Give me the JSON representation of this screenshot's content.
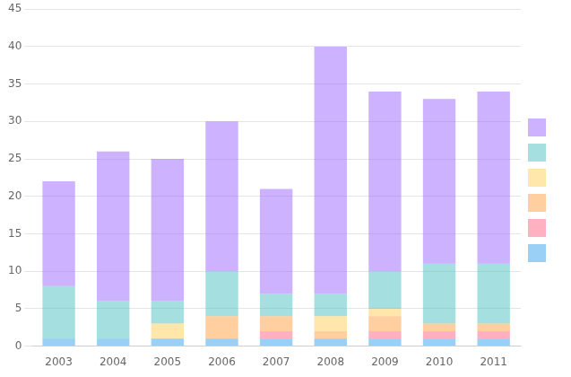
{
  "chart_data": {
    "type": "bar",
    "stacked": true,
    "categories": [
      "2003",
      "2004",
      "2005",
      "2006",
      "2007",
      "2008",
      "2009",
      "2010",
      "2011"
    ],
    "series": [
      {
        "values": [
          1,
          1,
          1,
          1,
          1,
          1,
          1,
          1,
          1
        ]
      },
      {
        "values": [
          0,
          0,
          0,
          0,
          1,
          0,
          1,
          1,
          1
        ]
      },
      {
        "values": [
          0,
          0,
          0,
          3,
          2,
          1,
          2,
          1,
          1
        ]
      },
      {
        "values": [
          0,
          0,
          2,
          0,
          0,
          2,
          1,
          0,
          0
        ]
      },
      {
        "values": [
          7,
          5,
          3,
          6,
          3,
          3,
          5,
          8,
          8
        ]
      },
      {
        "values": [
          14,
          20,
          19,
          20,
          14,
          33,
          24,
          22,
          23
        ]
      }
    ],
    "ylim": [
      0,
      45
    ],
    "yticks": [
      0,
      5,
      10,
      15,
      20,
      25,
      30,
      35,
      40,
      45
    ],
    "grid": true,
    "legend": "right"
  }
}
